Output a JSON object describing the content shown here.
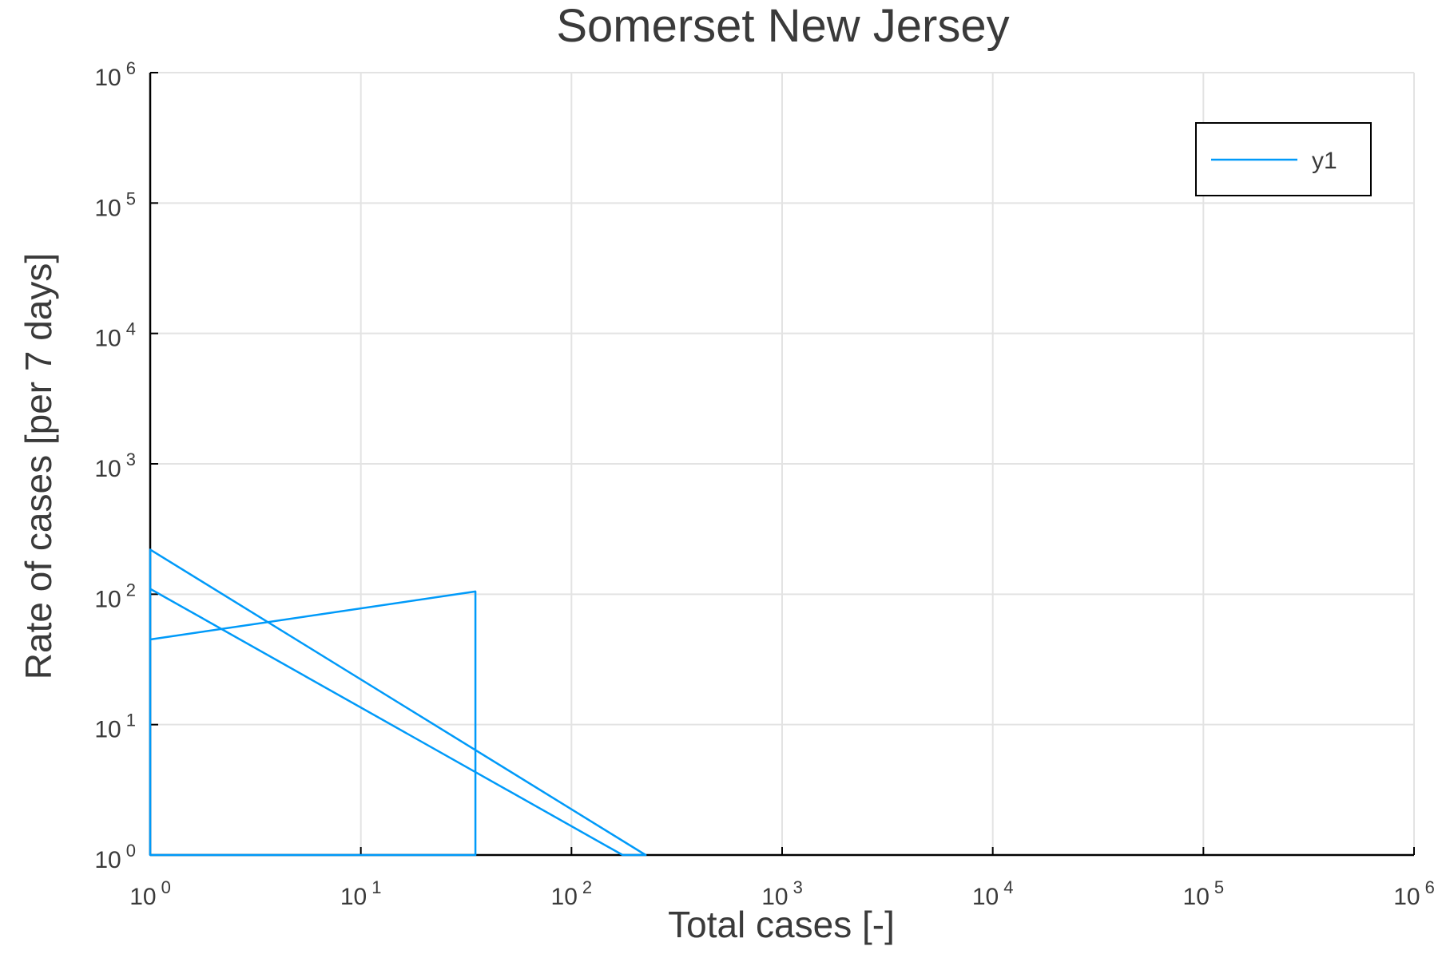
{
  "chart_data": {
    "type": "line",
    "title": "Somerset New Jersey",
    "xlabel": "Total cases [-]",
    "ylabel": "Rate of cases [per 7 days]",
    "xscale": "log",
    "yscale": "log",
    "xlim": [
      1,
      1000000
    ],
    "ylim": [
      1,
      1000000
    ],
    "grid": true,
    "legend_position": "top-right",
    "x_ticks": [
      {
        "base": "10",
        "exp": "0"
      },
      {
        "base": "10",
        "exp": "1"
      },
      {
        "base": "10",
        "exp": "2"
      },
      {
        "base": "10",
        "exp": "3"
      },
      {
        "base": "10",
        "exp": "4"
      },
      {
        "base": "10",
        "exp": "5"
      },
      {
        "base": "10",
        "exp": "6"
      }
    ],
    "y_ticks": [
      {
        "base": "10",
        "exp": "0"
      },
      {
        "base": "10",
        "exp": "1"
      },
      {
        "base": "10",
        "exp": "2"
      },
      {
        "base": "10",
        "exp": "3"
      },
      {
        "base": "10",
        "exp": "4"
      },
      {
        "base": "10",
        "exp": "5"
      },
      {
        "base": "10",
        "exp": "6"
      }
    ],
    "series": [
      {
        "name": "y1",
        "color": "#009af9",
        "x": [
          1,
          1,
          35,
          35,
          1,
          1,
          175,
          225,
          1,
          1
        ],
        "y": [
          1,
          45,
          105,
          1,
          1,
          110,
          1,
          1,
          220,
          1
        ]
      }
    ]
  }
}
